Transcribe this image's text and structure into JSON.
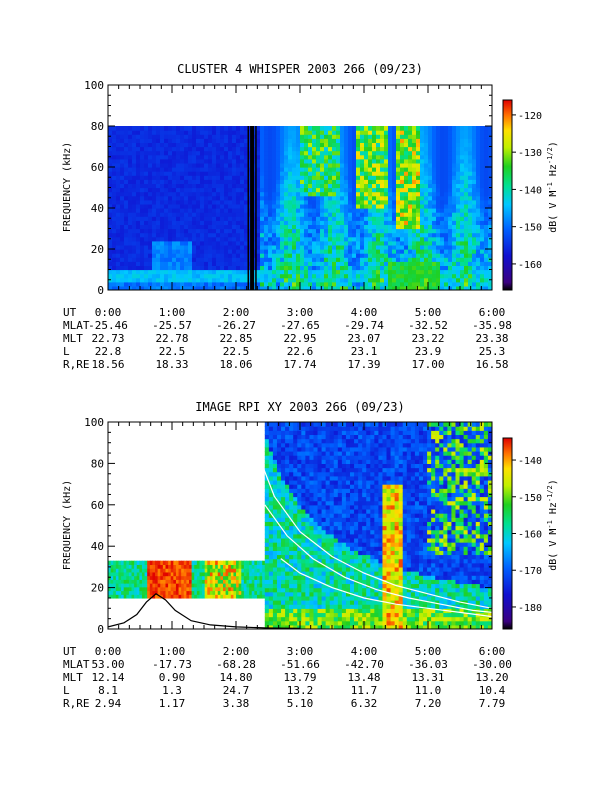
{
  "chart_data": [
    {
      "type": "heatmap",
      "title": "CLUSTER 4 WHISPER 2003 266 (09/23)",
      "ylabel": "FREQUENCY (kHz)",
      "ylim": [
        0,
        100
      ],
      "yticks": [
        "0",
        "20",
        "40",
        "60",
        "80",
        "100"
      ],
      "xticks": [
        "0:00",
        "1:00",
        "2:00",
        "3:00",
        "4:00",
        "5:00",
        "6:00"
      ],
      "xlim_hours": [
        0,
        6
      ],
      "data_fmax_khz": 80,
      "colorbar": {
        "label": "dB( V M⁻¹ Hz⁻¹ᐟ²)",
        "label_main": "dB( V M",
        "label_sup1": "-1",
        "label_mid": " Hz",
        "label_sup2": "-1/2",
        "label_end": ")",
        "range": [
          -167,
          -116
        ],
        "ticks": [
          "-120",
          "-130",
          "-140",
          "-150",
          "-160"
        ],
        "tick_values": [
          -120,
          -130,
          -140,
          -150,
          -160
        ]
      },
      "ephemeris": {
        "labels": [
          "UT",
          "MLAT",
          "MLT",
          "L",
          "R,RE"
        ],
        "rows": [
          [
            "0:00",
            "1:00",
            "2:00",
            "3:00",
            "4:00",
            "5:00",
            "6:00"
          ],
          [
            "-25.46",
            "-25.57",
            "-26.27",
            "-27.65",
            "-29.74",
            "-32.52",
            "-35.98"
          ],
          [
            "22.73",
            "22.78",
            "22.85",
            "22.95",
            "23.07",
            "23.22",
            "23.38"
          ],
          [
            "22.8",
            "22.5",
            "22.5",
            "22.6",
            "23.1",
            "23.9",
            "25.3"
          ],
          [
            "18.56",
            "18.33",
            "18.06",
            "17.74",
            "17.39",
            "17.00",
            "16.58"
          ]
        ]
      }
    },
    {
      "type": "heatmap",
      "title": "IMAGE RPI XY 2003 266 (09/23)",
      "ylabel": "FREQUENCY (kHz)",
      "ylim": [
        0,
        100
      ],
      "yticks": [
        "0",
        "20",
        "40",
        "60",
        "80",
        "100"
      ],
      "xticks": [
        "0:00",
        "1:00",
        "2:00",
        "3:00",
        "4:00",
        "5:00",
        "6:00"
      ],
      "xlim_hours": [
        0,
        6
      ],
      "data_blocks": [
        {
          "t0": 0.0,
          "t1": 2.45,
          "f0": 15,
          "f1": 33
        },
        {
          "t0": 2.45,
          "t1": 6.0,
          "f0": 0,
          "f1": 100
        }
      ],
      "colorbar": {
        "label_main": "dB( V M",
        "label_sup1": "-1",
        "label_mid": " Hz",
        "label_sup2": "-1/2",
        "label_end": ")",
        "range": [
          -186,
          -134
        ],
        "ticks": [
          "-140",
          "-150",
          "-160",
          "-170",
          "-180"
        ],
        "tick_values": [
          -140,
          -150,
          -160,
          -170,
          -180
        ]
      },
      "overlay_curves": [
        {
          "color": "#000000",
          "points": [
            [
              0,
              1
            ],
            [
              0.25,
              3
            ],
            [
              0.45,
              7
            ],
            [
              0.6,
              13
            ],
            [
              0.75,
              17
            ],
            [
              0.9,
              14
            ],
            [
              1.05,
              9
            ],
            [
              1.3,
              4
            ],
            [
              1.6,
              2
            ],
            [
              2.0,
              1
            ],
            [
              2.5,
              0.5
            ],
            [
              3.0,
              0.3
            ]
          ]
        },
        {
          "color": "#ffffff",
          "points": [
            [
              2.35,
              84
            ],
            [
              2.6,
              64
            ],
            [
              3.0,
              47
            ],
            [
              3.5,
              35
            ],
            [
              4.0,
              27
            ],
            [
              4.5,
              21
            ],
            [
              5.0,
              17
            ],
            [
              5.5,
              13
            ],
            [
              6.0,
              10
            ]
          ]
        },
        {
          "color": "#ffffff",
          "points": [
            [
              2.45,
              60
            ],
            [
              2.8,
              45
            ],
            [
              3.2,
              34
            ],
            [
              3.7,
              25
            ],
            [
              4.2,
              19
            ],
            [
              4.7,
              15
            ],
            [
              5.2,
              12
            ],
            [
              5.7,
              9
            ],
            [
              6.0,
              8
            ]
          ]
        },
        {
          "color": "#ffffff",
          "points": [
            [
              2.7,
              34
            ],
            [
              3.0,
              27
            ],
            [
              3.5,
              20
            ],
            [
              4.0,
              15
            ],
            [
              4.5,
              12
            ],
            [
              5.0,
              10
            ],
            [
              5.5,
              8
            ],
            [
              6.0,
              6
            ]
          ]
        }
      ],
      "ephemeris": {
        "labels": [
          "UT",
          "MLAT",
          "MLT",
          "L",
          "R,RE"
        ],
        "rows": [
          [
            "0:00",
            "1:00",
            "2:00",
            "3:00",
            "4:00",
            "5:00",
            "6:00"
          ],
          [
            "53.00",
            "-17.73",
            "-68.28",
            "-51.66",
            "-42.70",
            "-36.03",
            "-30.00"
          ],
          [
            "12.14",
            "0.90",
            "14.80",
            "13.79",
            "13.48",
            "13.31",
            "13.20"
          ],
          [
            "8.1",
            "1.3",
            "24.7",
            "13.2",
            "11.7",
            "11.0",
            "10.4"
          ],
          [
            "2.94",
            "1.17",
            "3.38",
            "5.10",
            "6.32",
            "7.20",
            "7.79"
          ]
        ]
      }
    }
  ]
}
